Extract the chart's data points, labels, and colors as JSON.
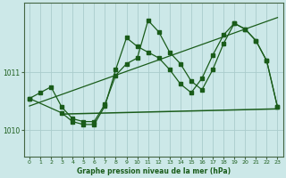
{
  "bg_color": "#cce8e8",
  "grid_color": "#aacccc",
  "line_color": "#1a5c1a",
  "title": "Graphe pression niveau de la mer (hPa)",
  "xlim": [
    -0.5,
    23.5
  ],
  "ylim": [
    1009.55,
    1012.2
  ],
  "yticks": [
    1010,
    1011
  ],
  "xticks": [
    0,
    1,
    2,
    3,
    4,
    5,
    6,
    7,
    8,
    9,
    10,
    11,
    12,
    13,
    14,
    15,
    16,
    17,
    18,
    19,
    20,
    21,
    22,
    23
  ],
  "series1_x": [
    0,
    1,
    2,
    3,
    4,
    5,
    6,
    7,
    8,
    9,
    10,
    11,
    12,
    13,
    14,
    15,
    16,
    17,
    18,
    19,
    20,
    21,
    22,
    23
  ],
  "series1_y": [
    1010.55,
    1010.65,
    1010.75,
    1010.4,
    1010.2,
    1010.15,
    1010.15,
    1010.45,
    1010.95,
    1011.15,
    1011.25,
    1011.9,
    1011.7,
    1011.35,
    1011.15,
    1010.85,
    1010.7,
    1011.05,
    1011.5,
    1011.85,
    1011.75,
    1011.55,
    1011.2,
    1010.4
  ],
  "series2_x": [
    0,
    3,
    4,
    5,
    6,
    7,
    8,
    9,
    10,
    11,
    12,
    13,
    14,
    15,
    16,
    17,
    18,
    19,
    20,
    21,
    22,
    23
  ],
  "series2_y": [
    1010.55,
    1010.3,
    1010.15,
    1010.1,
    1010.1,
    1010.42,
    1011.05,
    1011.6,
    1011.45,
    1011.35,
    1011.25,
    1011.05,
    1010.8,
    1010.65,
    1010.9,
    1011.3,
    1011.65,
    1011.85,
    1011.75,
    1011.55,
    1011.2,
    1010.4
  ],
  "series3_x": [
    3,
    23
  ],
  "series3_y": [
    1010.28,
    1010.37
  ],
  "trend_x": [
    0,
    23
  ],
  "trend_y": [
    1010.42,
    1011.95
  ]
}
